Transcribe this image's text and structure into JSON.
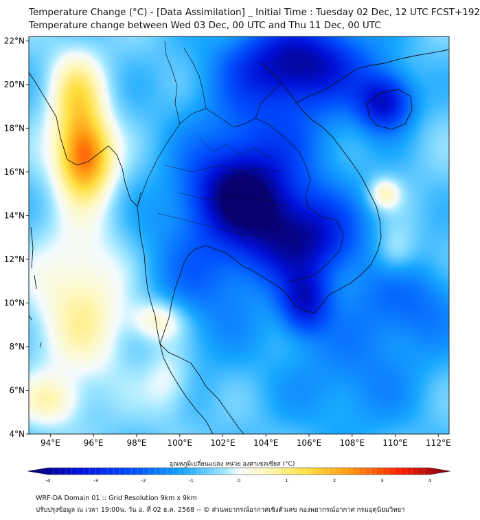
{
  "header": {
    "title": "Temperature Change (°C) - [Data Assimilation] _ Initial Time : Tuesday 02 Dec, 12 UTC FCST+192",
    "subtitle": "Temperature change between Wed 03 Dec, 00 UTC and Thu 11 Dec, 00 UTC"
  },
  "map": {
    "lon_range": [
      93,
      112.5
    ],
    "lat_range": [
      4,
      22.2
    ],
    "lon_ticks": [
      "94°E",
      "96°E",
      "98°E",
      "100°E",
      "102°E",
      "104°E",
      "106°E",
      "108°E",
      "110°E",
      "112°E"
    ],
    "lat_ticks": [
      "22°N",
      "20°N",
      "18°N",
      "16°N",
      "14°N",
      "12°N",
      "10°N",
      "8°N",
      "6°N",
      "4°N"
    ],
    "anomalies": [
      {
        "lon": 95.6,
        "lat": 16.7,
        "value": 3.3,
        "sx": 0.9,
        "sy": 1.3
      },
      {
        "lon": 95.2,
        "lat": 19.5,
        "value": 1.5,
        "sx": 0.9,
        "sy": 1.4
      },
      {
        "lon": 95.5,
        "lat": 10.0,
        "value": 1.2,
        "sx": 1.6,
        "sy": 2.6
      },
      {
        "lon": 99.0,
        "lat": 9.2,
        "value": 1.2,
        "sx": 0.9,
        "sy": 0.7
      },
      {
        "lon": 99.5,
        "lat": 6.5,
        "value": 0.6,
        "sx": 0.8,
        "sy": 1.2
      },
      {
        "lon": 94.0,
        "lat": 5.5,
        "value": 0.8,
        "sx": 1.0,
        "sy": 0.8
      },
      {
        "lon": 109.5,
        "lat": 15.0,
        "value": 1.0,
        "sx": 0.5,
        "sy": 0.5
      },
      {
        "lon": 110.0,
        "lat": 12.3,
        "value": 0.6,
        "sx": 0.7,
        "sy": 0.8
      },
      {
        "lon": 105.5,
        "lat": 21.0,
        "value": -3.6,
        "sx": 2.2,
        "sy": 1.3
      },
      {
        "lon": 109.5,
        "lat": 19.2,
        "value": -3.2,
        "sx": 0.9,
        "sy": 0.9
      },
      {
        "lon": 102.8,
        "lat": 15.0,
        "value": -3.4,
        "sx": 1.5,
        "sy": 1.3
      },
      {
        "lon": 105.5,
        "lat": 13.0,
        "value": -3.6,
        "sx": 1.9,
        "sy": 1.4
      },
      {
        "lon": 105.8,
        "lat": 10.0,
        "value": -2.8,
        "sx": 0.8,
        "sy": 1.0
      },
      {
        "lon": 101.0,
        "lat": 11.5,
        "value": -1.5,
        "sx": 2.2,
        "sy": 2.8
      },
      {
        "lon": 104.0,
        "lat": 17.5,
        "value": -1.8,
        "sx": 2.5,
        "sy": 2.0
      },
      {
        "lon": 108.0,
        "lat": 6.5,
        "value": -1.2,
        "sx": 2.5,
        "sy": 2.0
      },
      {
        "lon": 110.5,
        "lat": 10.0,
        "value": -1.5,
        "sx": 2.0,
        "sy": 1.5
      }
    ],
    "base_value": -0.6
  },
  "colorbar": {
    "title": "อุณหภูมิเปลี่ยนแปลง หน่วย องศาเซลเซียส (°C)",
    "tick_labels": [
      "-4",
      "-3",
      "-2",
      "-1",
      "0",
      "1",
      "2",
      "3",
      "4"
    ],
    "range": [
      -4,
      4
    ]
  },
  "footer": {
    "line1": "WRF-DA Domain 01 :: Grid Resolution 9km x 9km",
    "line2": "ปรับปรุงข้อมูล ณ เวลา 19:00น. วัน อ. ที่ 02 ธ.ค. 2568 -- © ส่วนพยากรณ์อากาศเชิงตัวเลข กองพยากรณ์อากาศ กรมอุตุนิยมวิทยา"
  }
}
